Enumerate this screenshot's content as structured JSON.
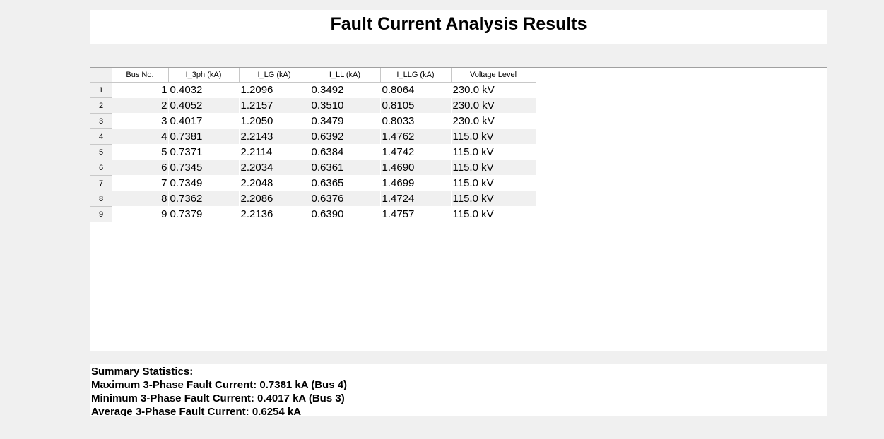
{
  "title": "Fault Current Analysis Results",
  "table": {
    "columns": [
      "Bus No.",
      "I_3ph (kA)",
      "I_LG (kA)",
      "I_LL (kA)",
      "I_LLG (kA)",
      "Voltage Level"
    ],
    "rows": [
      {
        "index": "1",
        "bus": "1",
        "i3ph": "0.4032",
        "ilg": "1.2096",
        "ill": "0.3492",
        "illg": "0.8064",
        "voltage": "230.0 kV"
      },
      {
        "index": "2",
        "bus": "2",
        "i3ph": "0.4052",
        "ilg": "1.2157",
        "ill": "0.3510",
        "illg": "0.8105",
        "voltage": "230.0 kV"
      },
      {
        "index": "3",
        "bus": "3",
        "i3ph": "0.4017",
        "ilg": "1.2050",
        "ill": "0.3479",
        "illg": "0.8033",
        "voltage": "230.0 kV"
      },
      {
        "index": "4",
        "bus": "4",
        "i3ph": "0.7381",
        "ilg": "2.2143",
        "ill": "0.6392",
        "illg": "1.4762",
        "voltage": "115.0 kV"
      },
      {
        "index": "5",
        "bus": "5",
        "i3ph": "0.7371",
        "ilg": "2.2114",
        "ill": "0.6384",
        "illg": "1.4742",
        "voltage": "115.0 kV"
      },
      {
        "index": "6",
        "bus": "6",
        "i3ph": "0.7345",
        "ilg": "2.2034",
        "ill": "0.6361",
        "illg": "1.4690",
        "voltage": "115.0 kV"
      },
      {
        "index": "7",
        "bus": "7",
        "i3ph": "0.7349",
        "ilg": "2.2048",
        "ill": "0.6365",
        "illg": "1.4699",
        "voltage": "115.0 kV"
      },
      {
        "index": "8",
        "bus": "8",
        "i3ph": "0.7362",
        "ilg": "2.2086",
        "ill": "0.6376",
        "illg": "1.4724",
        "voltage": "115.0 kV"
      },
      {
        "index": "9",
        "bus": "9",
        "i3ph": "0.7379",
        "ilg": "2.2136",
        "ill": "0.6390",
        "illg": "1.4757",
        "voltage": "115.0 kV"
      }
    ]
  },
  "summary": {
    "heading": "Summary Statistics:",
    "max": "Maximum 3-Phase Fault Current: 0.7381 kA (Bus 4)",
    "min": "Minimum 3-Phase Fault Current: 0.4017 kA (Bus 3)",
    "avg": "Average 3-Phase Fault Current: 0.6254 kA"
  }
}
